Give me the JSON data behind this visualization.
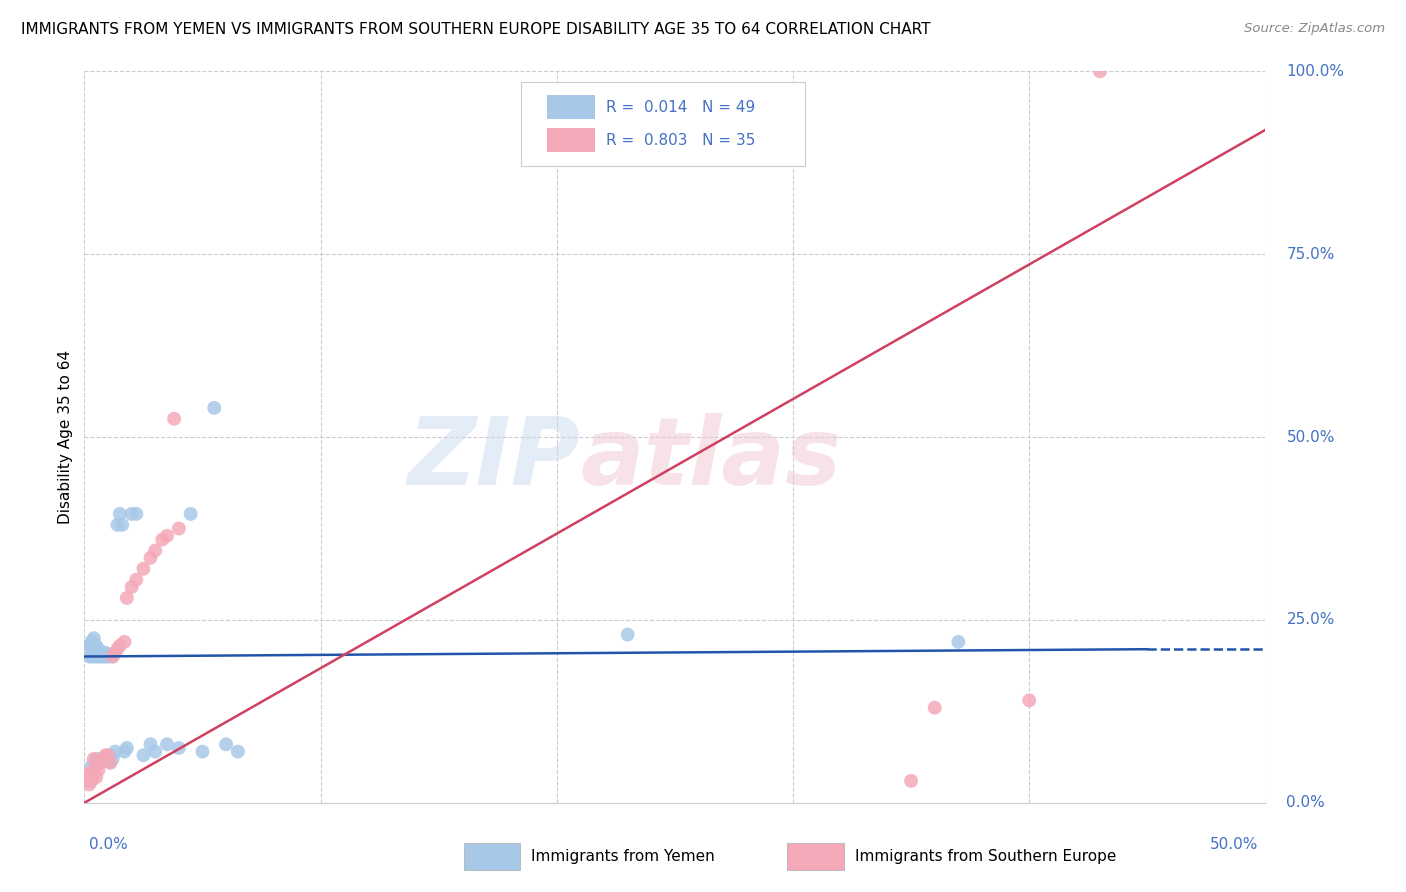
{
  "title": "IMMIGRANTS FROM YEMEN VS IMMIGRANTS FROM SOUTHERN EUROPE DISABILITY AGE 35 TO 64 CORRELATION CHART",
  "source": "Source: ZipAtlas.com",
  "xlabel_blue": "Immigrants from Yemen",
  "xlabel_pink": "Immigrants from Southern Europe",
  "ylabel": "Disability Age 35 to 64",
  "xlim": [
    0.0,
    0.5
  ],
  "ylim": [
    0.0,
    1.0
  ],
  "yticks": [
    0.0,
    0.25,
    0.5,
    0.75,
    1.0
  ],
  "ytick_labels": [
    "0.0%",
    "25.0%",
    "50.0%",
    "75.0%",
    "100.0%"
  ],
  "blue_R": 0.014,
  "blue_N": 49,
  "pink_R": 0.803,
  "pink_N": 35,
  "blue_color": "#a8c8e8",
  "pink_color": "#f4a8b8",
  "blue_line_color": "#2255aa",
  "pink_line_color": "#d04060",
  "watermark_zip": "ZIP",
  "watermark_atlas": "atlas",
  "blue_scatter_x": [
    0.002,
    0.002,
    0.003,
    0.003,
    0.003,
    0.003,
    0.004,
    0.004,
    0.004,
    0.005,
    0.005,
    0.005,
    0.005,
    0.006,
    0.006,
    0.006,
    0.007,
    0.007,
    0.007,
    0.008,
    0.008,
    0.009,
    0.009,
    0.01,
    0.01,
    0.011,
    0.011,
    0.012,
    0.012,
    0.013,
    0.014,
    0.015,
    0.016,
    0.017,
    0.018,
    0.02,
    0.022,
    0.025,
    0.028,
    0.03,
    0.035,
    0.04,
    0.045,
    0.05,
    0.055,
    0.06,
    0.065,
    0.23,
    0.37
  ],
  "blue_scatter_y": [
    0.2,
    0.215,
    0.05,
    0.2,
    0.215,
    0.22,
    0.2,
    0.21,
    0.225,
    0.05,
    0.2,
    0.215,
    0.06,
    0.2,
    0.21,
    0.055,
    0.2,
    0.205,
    0.06,
    0.2,
    0.205,
    0.2,
    0.205,
    0.2,
    0.06,
    0.055,
    0.065,
    0.2,
    0.06,
    0.07,
    0.38,
    0.395,
    0.38,
    0.07,
    0.075,
    0.395,
    0.395,
    0.065,
    0.08,
    0.07,
    0.08,
    0.075,
    0.395,
    0.07,
    0.54,
    0.08,
    0.07,
    0.23,
    0.22
  ],
  "pink_scatter_x": [
    0.001,
    0.002,
    0.002,
    0.003,
    0.003,
    0.004,
    0.004,
    0.005,
    0.005,
    0.006,
    0.006,
    0.007,
    0.008,
    0.009,
    0.01,
    0.011,
    0.012,
    0.013,
    0.014,
    0.015,
    0.017,
    0.018,
    0.02,
    0.022,
    0.025,
    0.028,
    0.03,
    0.033,
    0.035,
    0.038,
    0.04,
    0.35,
    0.36,
    0.4,
    0.43
  ],
  "pink_scatter_y": [
    0.03,
    0.025,
    0.04,
    0.03,
    0.04,
    0.04,
    0.06,
    0.035,
    0.05,
    0.045,
    0.055,
    0.055,
    0.06,
    0.065,
    0.065,
    0.055,
    0.2,
    0.205,
    0.21,
    0.215,
    0.22,
    0.28,
    0.295,
    0.305,
    0.32,
    0.335,
    0.345,
    0.36,
    0.365,
    0.525,
    0.375,
    0.03,
    0.13,
    0.14,
    1.0
  ],
  "blue_line_x": [
    0.0,
    0.45,
    0.5
  ],
  "blue_line_y": [
    0.2,
    0.21,
    0.21
  ],
  "blue_line_solid_end": 0.45,
  "pink_line_x": [
    0.0,
    0.5
  ],
  "pink_line_y": [
    0.0,
    0.92
  ],
  "grid_color": "#cccccc",
  "background_color": "#ffffff",
  "tick_color": "#4472c4"
}
